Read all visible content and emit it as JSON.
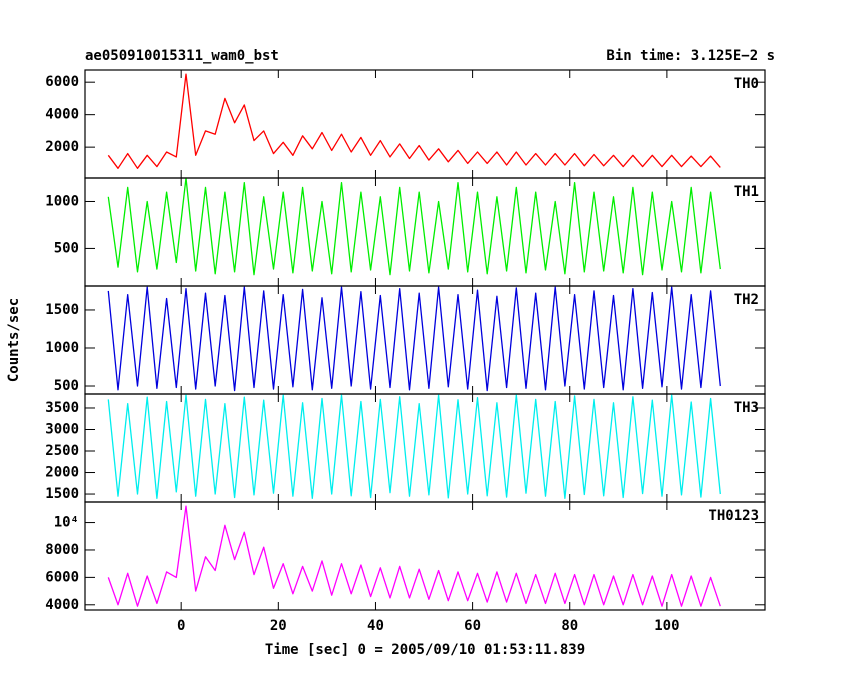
{
  "chart_data": [
    {
      "type": "line",
      "title": "ae050910015311_wam0_bst",
      "subtitle": "Bin time: 3.125E−2 s",
      "x": [
        -15,
        -13,
        -11,
        -9,
        -7,
        -5,
        -3,
        -1,
        1,
        3,
        5,
        7,
        9,
        11,
        13,
        15,
        17,
        19,
        21,
        23,
        25,
        27,
        29,
        31,
        33,
        35,
        37,
        39,
        41,
        43,
        45,
        47,
        49,
        51,
        53,
        55,
        57,
        59,
        61,
        63,
        65,
        67,
        69,
        71,
        73,
        75,
        77,
        79,
        81,
        83,
        85,
        87,
        89,
        91,
        93,
        95,
        97,
        99,
        101,
        103,
        105,
        107,
        109,
        111
      ],
      "series": [
        {
          "name": "TH0",
          "color": "#ff0000",
          "values": [
            1500,
            700,
            1600,
            700,
            1500,
            800,
            1700,
            1400,
            6500,
            1500,
            3000,
            2800,
            5000,
            3500,
            4600,
            2400,
            3000,
            1600,
            2300,
            1500,
            2700,
            1900,
            2900,
            1800,
            2800,
            1700,
            2600,
            1500,
            2400,
            1400,
            2200,
            1300,
            2100,
            1200,
            1900,
            1100,
            1800,
            1000,
            1700,
            1000,
            1700,
            900,
            1700,
            900,
            1600,
            900,
            1600,
            900,
            1600,
            850,
            1550,
            850,
            1500,
            800,
            1500,
            800,
            1500,
            800,
            1500,
            800,
            1450,
            800,
            1450,
            750
          ]
        }
      ],
      "ylim": [
        100,
        6750
      ],
      "yticks": [
        2000,
        4000,
        6000
      ]
    },
    {
      "type": "line",
      "x": [
        -15,
        -13,
        -11,
        -9,
        -7,
        -5,
        -3,
        -1,
        1,
        3,
        5,
        7,
        9,
        11,
        13,
        15,
        17,
        19,
        21,
        23,
        25,
        27,
        29,
        31,
        33,
        35,
        37,
        39,
        41,
        43,
        45,
        47,
        49,
        51,
        53,
        55,
        57,
        59,
        61,
        63,
        65,
        67,
        69,
        71,
        73,
        75,
        77,
        79,
        81,
        83,
        85,
        87,
        89,
        91,
        93,
        95,
        97,
        99,
        101,
        103,
        105,
        107,
        109,
        111
      ],
      "series": [
        {
          "name": "TH1",
          "color": "#00ee00",
          "values": [
            1050,
            300,
            1150,
            250,
            1000,
            280,
            1100,
            350,
            1250,
            260,
            1150,
            230,
            1100,
            250,
            1200,
            220,
            1050,
            280,
            1100,
            240,
            1150,
            260,
            1000,
            230,
            1200,
            250,
            1100,
            270,
            1050,
            220,
            1150,
            260,
            1100,
            240,
            1000,
            280,
            1200,
            250,
            1100,
            230,
            1050,
            260,
            1150,
            240,
            1100,
            270,
            1000,
            230,
            1200,
            250,
            1100,
            260,
            1050,
            240,
            1150,
            220,
            1100,
            270,
            1000,
            250,
            1150,
            240,
            1100,
            280
          ]
        }
      ],
      "ylim": [
        100,
        1250
      ],
      "yticks": [
        500,
        1000
      ]
    },
    {
      "type": "line",
      "ylabel": "Counts/sec",
      "x": [
        -15,
        -13,
        -11,
        -9,
        -7,
        -5,
        -3,
        -1,
        1,
        3,
        5,
        7,
        9,
        11,
        13,
        15,
        17,
        19,
        21,
        23,
        25,
        27,
        29,
        31,
        33,
        35,
        37,
        39,
        41,
        43,
        45,
        47,
        49,
        51,
        53,
        55,
        57,
        59,
        61,
        63,
        65,
        67,
        69,
        71,
        73,
        75,
        77,
        79,
        81,
        83,
        85,
        87,
        89,
        91,
        93,
        95,
        97,
        99,
        101,
        103,
        105,
        107,
        109,
        111
      ],
      "series": [
        {
          "name": "TH2",
          "color": "#0000dd",
          "values": [
            1750,
            450,
            1700,
            500,
            1800,
            470,
            1650,
            480,
            1780,
            460,
            1720,
            500,
            1690,
            440,
            1800,
            480,
            1750,
            460,
            1700,
            490,
            1770,
            450,
            1660,
            470,
            1800,
            500,
            1740,
            460,
            1690,
            480,
            1780,
            450,
            1720,
            470,
            1800,
            490,
            1700,
            460,
            1760,
            440,
            1680,
            480,
            1790,
            470,
            1720,
            450,
            1800,
            500,
            1700,
            460,
            1750,
            480,
            1690,
            450,
            1780,
            470,
            1730,
            490,
            1800,
            460,
            1700,
            480,
            1750,
            500
          ]
        }
      ],
      "ylim": [
        395,
        1815
      ],
      "yticks": [
        500,
        1000,
        1500
      ]
    },
    {
      "type": "line",
      "x": [
        -15,
        -13,
        -11,
        -9,
        -7,
        -5,
        -3,
        -1,
        1,
        3,
        5,
        7,
        9,
        11,
        13,
        15,
        17,
        19,
        21,
        23,
        25,
        27,
        29,
        31,
        33,
        35,
        37,
        39,
        41,
        43,
        45,
        47,
        49,
        51,
        53,
        55,
        57,
        59,
        61,
        63,
        65,
        67,
        69,
        71,
        73,
        75,
        77,
        79,
        81,
        83,
        85,
        87,
        89,
        91,
        93,
        95,
        97,
        99,
        101,
        103,
        105,
        107,
        109,
        111
      ],
      "series": [
        {
          "name": "TH3",
          "color": "#00eeee",
          "values": [
            3700,
            1450,
            3600,
            1500,
            3750,
            1400,
            3650,
            1550,
            3800,
            1450,
            3700,
            1500,
            3600,
            1420,
            3750,
            1480,
            3680,
            1520,
            3800,
            1450,
            3620,
            1400,
            3720,
            1500,
            3800,
            1460,
            3650,
            1420,
            3700,
            1530,
            3760,
            1450,
            3600,
            1480,
            3800,
            1410,
            3690,
            1500,
            3740,
            1460,
            3620,
            1430,
            3800,
            1520,
            3700,
            1450,
            3650,
            1400,
            3780,
            1490,
            3700,
            1460,
            3620,
            1420,
            3760,
            1510,
            3680,
            1450,
            3800,
            1480,
            3640,
            1430,
            3720,
            1500
          ]
        }
      ],
      "ylim": [
        1315,
        3825
      ],
      "yticks": [
        1500,
        2000,
        2500,
        3000,
        3500
      ]
    },
    {
      "type": "line",
      "xlabel": "Time [sec] 0 = 2005/09/10 01:53:11.839",
      "x": [
        -15,
        -13,
        -11,
        -9,
        -7,
        -5,
        -3,
        -1,
        1,
        3,
        5,
        7,
        9,
        11,
        13,
        15,
        17,
        19,
        21,
        23,
        25,
        27,
        29,
        31,
        33,
        35,
        37,
        39,
        41,
        43,
        45,
        47,
        49,
        51,
        53,
        55,
        57,
        59,
        61,
        63,
        65,
        67,
        69,
        71,
        73,
        75,
        77,
        79,
        81,
        83,
        85,
        87,
        89,
        91,
        93,
        95,
        97,
        99,
        101,
        103,
        105,
        107,
        109,
        111
      ],
      "series": [
        {
          "name": "TH0123",
          "color": "#ff00ff",
          "values": [
            6000,
            4000,
            6300,
            3900,
            6100,
            4100,
            6400,
            6000,
            11200,
            5000,
            7500,
            6500,
            9800,
            7300,
            9300,
            6200,
            8200,
            5200,
            7000,
            4800,
            6800,
            5000,
            7200,
            4700,
            7000,
            4800,
            6900,
            4600,
            6700,
            4500,
            6800,
            4500,
            6600,
            4400,
            6500,
            4300,
            6400,
            4300,
            6300,
            4200,
            6400,
            4200,
            6300,
            4100,
            6200,
            4100,
            6300,
            4100,
            6200,
            4000,
            6200,
            4000,
            6100,
            4000,
            6200,
            4000,
            6100,
            3900,
            6200,
            3900,
            6100,
            3900,
            6000,
            3900
          ]
        }
      ],
      "ylim": [
        3620,
        11500
      ],
      "yticks": [
        4000,
        6000,
        8000,
        {
          "value": 10000,
          "label": "10⁴"
        }
      ],
      "xlim": [
        -19.8,
        120.2
      ],
      "xticks": [
        0,
        20,
        40,
        60,
        80,
        100
      ]
    }
  ]
}
